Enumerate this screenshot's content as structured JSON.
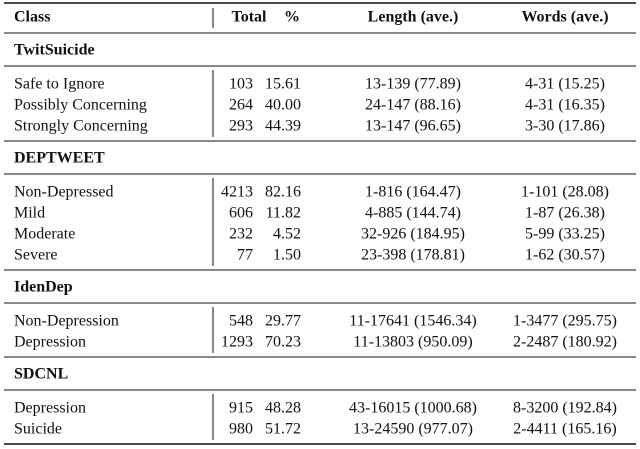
{
  "table": {
    "header": [
      "Class",
      "Total",
      "%",
      "Length (ave.)",
      "Words (ave.)"
    ],
    "sections": [
      {
        "name": "TwitSuicide",
        "rows": [
          [
            "Safe to Ignore",
            "103",
            "15.61",
            "13-139 (77.89)",
            "4-31 (15.25)"
          ],
          [
            "Possibly Concerning",
            "264",
            "40.00",
            "24-147 (88.16)",
            "4-31 (16.35)"
          ],
          [
            "Strongly Concerning",
            "293",
            "44.39",
            "13-147 (96.65)",
            "3-30 (17.86)"
          ]
        ]
      },
      {
        "name": "DEPTWEET",
        "rows": [
          [
            "Non-Depressed",
            "4213",
            "82.16",
            "1-816 (164.47)",
            "1-101 (28.08)"
          ],
          [
            "Mild",
            "606",
            "11.82",
            "4-885 (144.74)",
            "1-87 (26.38)"
          ],
          [
            "Moderate",
            "232",
            "4.52",
            "32-926 (184.95)",
            "5-99 (33.25)"
          ],
          [
            "Severe",
            "77",
            "1.50",
            "23-398 (178.81)",
            "1-62 (30.57)"
          ]
        ]
      },
      {
        "name": "IdenDep",
        "rows": [
          [
            "Non-Depression",
            "548",
            "29.77",
            "11-17641 (1546.34)",
            "1-3477 (295.75)"
          ],
          [
            "Depression",
            "1293",
            "70.23",
            "11-13803 (950.09)",
            "2-2487 (180.92)"
          ]
        ]
      },
      {
        "name": "SDCNL",
        "rows": [
          [
            "Depression",
            "915",
            "48.28",
            "43-16015 (1000.68)",
            "8-3200 (192.84)"
          ],
          [
            "Suicide",
            "980",
            "51.72",
            "13-24590 (977.07)",
            "2-4411 (165.16)"
          ]
        ]
      }
    ]
  }
}
